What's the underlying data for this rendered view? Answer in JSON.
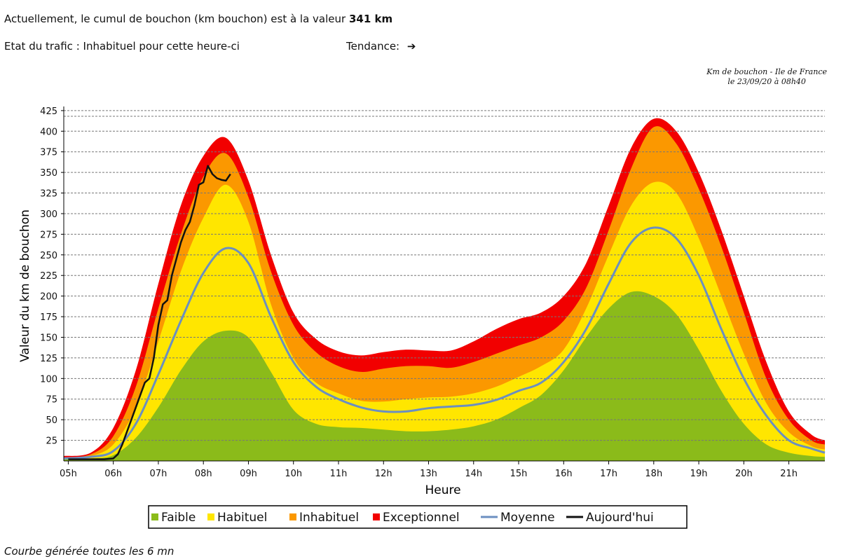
{
  "header": {
    "cumul_text": "Actuellement, le cumul de bouchon (km bouchon) est à la valeur",
    "cumul_value": "341 km",
    "etat_text": "Etat du trafic : Inhabituel pour cette heure-ci",
    "tendance_label": "Tendance:",
    "tendance_icon": "arrow-right-icon",
    "tendance_glyph": "➔"
  },
  "caption": {
    "line1": "Km de bouchon - Ile de France",
    "line2": "le 23/09/20 à 08h40"
  },
  "footer": {
    "text": "Courbe générée toutes les 6 mn"
  },
  "chart_data": {
    "type": "area",
    "title": "Km de bouchon - Ile de France",
    "xlabel": "Heure",
    "ylabel": "Valeur du  km de bouchon",
    "xlim": [
      4.9,
      21.8
    ],
    "ylim": [
      0,
      430
    ],
    "yticks": [
      25,
      50,
      75,
      100,
      125,
      150,
      175,
      200,
      225,
      250,
      275,
      300,
      325,
      350,
      375,
      400,
      425
    ],
    "xticks": [
      {
        "v": 5,
        "label": "05h"
      },
      {
        "v": 6,
        "label": "06h"
      },
      {
        "v": 7,
        "label": "07h"
      },
      {
        "v": 8,
        "label": "08h"
      },
      {
        "v": 9,
        "label": "09h"
      },
      {
        "v": 10,
        "label": "10h"
      },
      {
        "v": 11,
        "label": "11h"
      },
      {
        "v": 12,
        "label": "12h"
      },
      {
        "v": 13,
        "label": "13h"
      },
      {
        "v": 14,
        "label": "14h"
      },
      {
        "v": 15,
        "label": "15h"
      },
      {
        "v": 16,
        "label": "16h"
      },
      {
        "v": 17,
        "label": "17h"
      },
      {
        "v": 18,
        "label": "18h"
      },
      {
        "v": 19,
        "label": "19h"
      },
      {
        "v": 20,
        "label": "20h"
      },
      {
        "v": 21,
        "label": "21h"
      }
    ],
    "grid": true,
    "legend_position": "bottom",
    "x": [
      4.9,
      5.5,
      6.0,
      6.5,
      7.0,
      7.5,
      8.0,
      8.5,
      9.0,
      9.5,
      10.0,
      10.5,
      11.0,
      11.5,
      12.0,
      12.5,
      13.0,
      13.5,
      14.0,
      14.5,
      15.0,
      15.5,
      16.0,
      16.5,
      17.0,
      17.5,
      18.0,
      18.5,
      19.0,
      19.5,
      20.0,
      20.5,
      21.0,
      21.5,
      21.8
    ],
    "series": [
      {
        "name": "Exceptionnel",
        "color": "#f20000",
        "kind": "area",
        "values": [
          6,
          10,
          40,
          110,
          215,
          310,
          370,
          392,
          340,
          250,
          180,
          148,
          133,
          128,
          132,
          135,
          134,
          134,
          145,
          160,
          172,
          180,
          200,
          240,
          310,
          380,
          415,
          400,
          350,
          280,
          200,
          120,
          60,
          32,
          25
        ]
      },
      {
        "name": "Inhabituel",
        "color": "#fb9800",
        "kind": "area",
        "values": [
          4,
          8,
          30,
          90,
          185,
          275,
          345,
          373,
          320,
          230,
          165,
          132,
          115,
          108,
          112,
          115,
          115,
          113,
          120,
          130,
          140,
          150,
          170,
          210,
          280,
          355,
          405,
          385,
          330,
          260,
          180,
          100,
          50,
          25,
          20
        ]
      },
      {
        "name": "Habituel",
        "color": "#ffe600",
        "kind": "area",
        "values": [
          3,
          6,
          20,
          65,
          145,
          230,
          295,
          335,
          290,
          190,
          125,
          95,
          82,
          73,
          72,
          75,
          77,
          78,
          82,
          90,
          102,
          115,
          135,
          185,
          250,
          310,
          338,
          325,
          270,
          200,
          130,
          70,
          35,
          18,
          14
        ]
      },
      {
        "name": "Faible",
        "color": "#8bbb1a",
        "kind": "area",
        "values": [
          2,
          3,
          7,
          28,
          65,
          110,
          145,
          158,
          150,
          108,
          62,
          45,
          41,
          40,
          38,
          36,
          36,
          38,
          42,
          50,
          64,
          80,
          110,
          150,
          185,
          205,
          200,
          178,
          135,
          85,
          45,
          20,
          10,
          6,
          5
        ]
      },
      {
        "name": "Moyenne",
        "color": "#6b8fc0",
        "kind": "line",
        "values": [
          3,
          5,
          12,
          45,
          105,
          170,
          228,
          258,
          240,
          175,
          120,
          90,
          75,
          65,
          60,
          60,
          64,
          66,
          68,
          74,
          85,
          95,
          120,
          160,
          215,
          265,
          283,
          270,
          225,
          160,
          100,
          55,
          25,
          15,
          10
        ]
      },
      {
        "name": "Aujourd'hui",
        "color": "#111111",
        "kind": "line",
        "x": [
          5.0,
          5.5,
          5.8,
          6.0,
          6.1,
          6.2,
          6.3,
          6.4,
          6.5,
          6.6,
          6.7,
          6.8,
          6.9,
          7.0,
          7.1,
          7.2,
          7.3,
          7.4,
          7.5,
          7.6,
          7.7,
          7.8,
          7.9,
          8.0,
          8.1,
          8.2,
          8.3,
          8.4,
          8.5,
          8.6
        ],
        "values": [
          2,
          2,
          2,
          3,
          8,
          20,
          35,
          50,
          65,
          80,
          95,
          100,
          125,
          165,
          190,
          195,
          225,
          245,
          265,
          280,
          290,
          310,
          335,
          338,
          358,
          348,
          343,
          341,
          340,
          348
        ]
      }
    ],
    "legend": [
      {
        "label": "Faible",
        "marker": "square",
        "color": "#8bbb1a"
      },
      {
        "label": "Habituel",
        "marker": "square",
        "color": "#ffe600"
      },
      {
        "label": "Inhabituel",
        "marker": "square",
        "color": "#fb9800"
      },
      {
        "label": "Exceptionnel",
        "marker": "square",
        "color": "#f20000"
      },
      {
        "label": "Moyenne",
        "marker": "line",
        "color": "#6b8fc0"
      },
      {
        "label": "Aujourd'hui",
        "marker": "line",
        "color": "#111111"
      }
    ]
  }
}
